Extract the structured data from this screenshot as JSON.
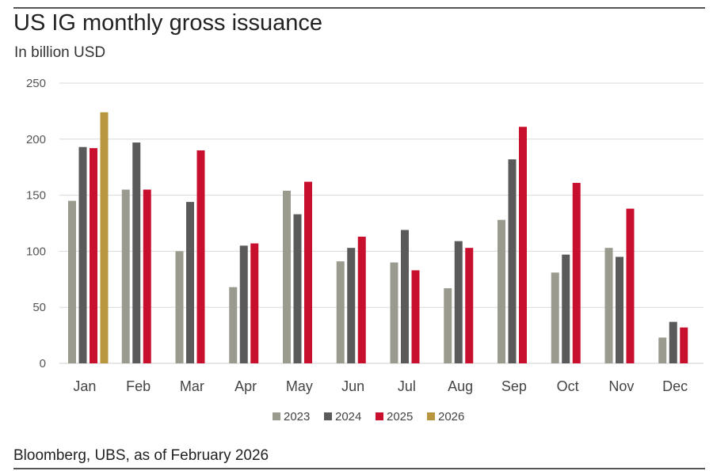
{
  "header": {
    "title": "US IG monthly gross issuance",
    "subtitle": "In billion USD"
  },
  "footer": {
    "source": "Bloomberg, UBS, as of February 2026"
  },
  "chart_data": {
    "type": "bar",
    "title": "US IG monthly gross issuance",
    "ylabel": "In billion USD",
    "xlabel": "",
    "ylim": [
      0,
      250
    ],
    "yticks": [
      0,
      50,
      100,
      150,
      200,
      250
    ],
    "grid": true,
    "legend_position": "bottom-center",
    "categories": [
      "Jan",
      "Feb",
      "Mar",
      "Apr",
      "May",
      "Jun",
      "Jul",
      "Aug",
      "Sep",
      "Oct",
      "Nov",
      "Dec"
    ],
    "series": [
      {
        "name": "2023",
        "color": "#9a9a8f",
        "values": [
          145,
          155,
          100,
          68,
          154,
          91,
          90,
          67,
          128,
          81,
          103,
          23
        ]
      },
      {
        "name": "2024",
        "color": "#5a5a5a",
        "values": [
          193,
          197,
          144,
          105,
          133,
          103,
          119,
          109,
          182,
          97,
          95,
          37
        ]
      },
      {
        "name": "2025",
        "color": "#c8102e",
        "values": [
          192,
          155,
          190,
          107,
          162,
          113,
          83,
          103,
          211,
          161,
          138,
          32
        ]
      },
      {
        "name": "2026",
        "color": "#b8963e",
        "values": [
          224,
          null,
          null,
          null,
          null,
          null,
          null,
          null,
          null,
          null,
          null,
          null
        ]
      }
    ]
  }
}
